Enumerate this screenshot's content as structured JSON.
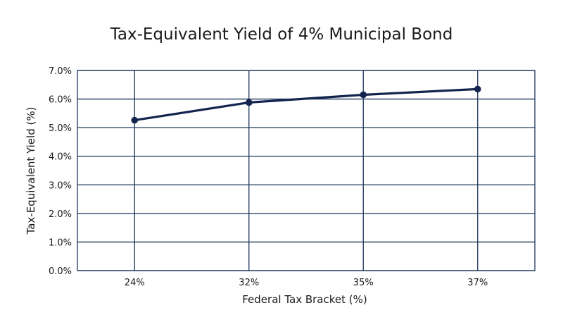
{
  "chart_data": {
    "type": "line",
    "title": "Tax-Equivalent Yield of 4% Municipal Bond",
    "xlabel": "Federal Tax Bracket (%)",
    "ylabel": "Tax-Equivalent Yield (%)",
    "categories": [
      "24%",
      "32%",
      "35%",
      "37%"
    ],
    "series": [
      {
        "values": [
          5.26,
          5.88,
          6.15,
          6.35
        ]
      }
    ],
    "ylim": [
      0,
      7
    ],
    "yticks": [
      "0.0%",
      "1.0%",
      "2.0%",
      "3.0%",
      "4.0%",
      "5.0%",
      "6.0%",
      "7.0%"
    ],
    "grid": true,
    "line_color": "#13254f",
    "grid_color": "#1c3559"
  }
}
